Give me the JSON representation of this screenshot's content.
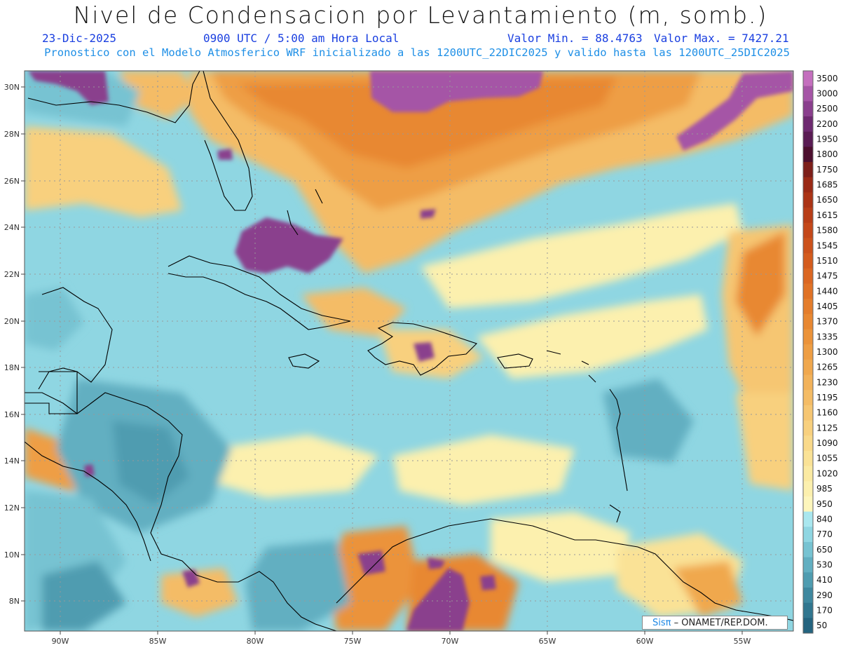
{
  "header": {
    "title": "Nivel de Condensacion por Levantamiento (m, somb.)",
    "date": "23-Dic-2025",
    "time": "0900 UTC / 5:00 am Hora Local",
    "min_value": "Valor Min. = 88.4763",
    "max_value": "Valor Max. = 7427.21",
    "model_info": "Pronostico con el Modelo Atmosferico WRF inicializado a las 1200UTC_22DIC2025 y valido hasta las  1200UTC_25DIC2025"
  },
  "map": {
    "lon_labels": [
      "90W",
      "85W",
      "80W",
      "75W",
      "70W",
      "65W",
      "60W",
      "55W"
    ],
    "lat_labels": [
      "30N",
      "28N",
      "26N",
      "24N",
      "22N",
      "20N",
      "18N",
      "16N",
      "14N",
      "12N",
      "10N",
      "8N"
    ],
    "lon_range": [
      -92,
      -52.5
    ],
    "lat_range": [
      6.7,
      30.7
    ]
  },
  "colorbar": {
    "levels": [
      "3500",
      "3000",
      "2500",
      "2200",
      "1950",
      "1800",
      "1750",
      "1685",
      "1650",
      "1615",
      "1580",
      "1545",
      "1510",
      "1475",
      "1440",
      "1405",
      "1370",
      "1335",
      "1300",
      "1265",
      "1230",
      "1195",
      "1160",
      "1125",
      "1090",
      "1055",
      "1020",
      "985",
      "950",
      "840",
      "770",
      "650",
      "530",
      "410",
      "290",
      "170",
      "50"
    ],
    "colors": [
      "#c46fbe",
      "#a555a6",
      "#8a3f8d",
      "#6e2a70",
      "#5a1c54",
      "#4c0f2e",
      "#7d1f1a",
      "#9a2a16",
      "#ab3416",
      "#b83e18",
      "#c4481a",
      "#cc521c",
      "#d45c1e",
      "#db6722",
      "#e07226",
      "#e47d2c",
      "#e88832",
      "#eb933a",
      "#ee9e44",
      "#f0a84e",
      "#f2b25a",
      "#f4bc66",
      "#f6c672",
      "#f8d07e",
      "#f9d98a",
      "#fae296",
      "#fbeaa2",
      "#fcf0ae",
      "#fdf6bc",
      "#a9e7ef",
      "#8fd6e2",
      "#77c3d2",
      "#62afc1",
      "#4f9cb0",
      "#3f889f",
      "#31768f",
      "#24647f"
    ]
  },
  "credit": {
    "brand": "Sisπ",
    "text": " – ONAMET/REP.DOM."
  }
}
